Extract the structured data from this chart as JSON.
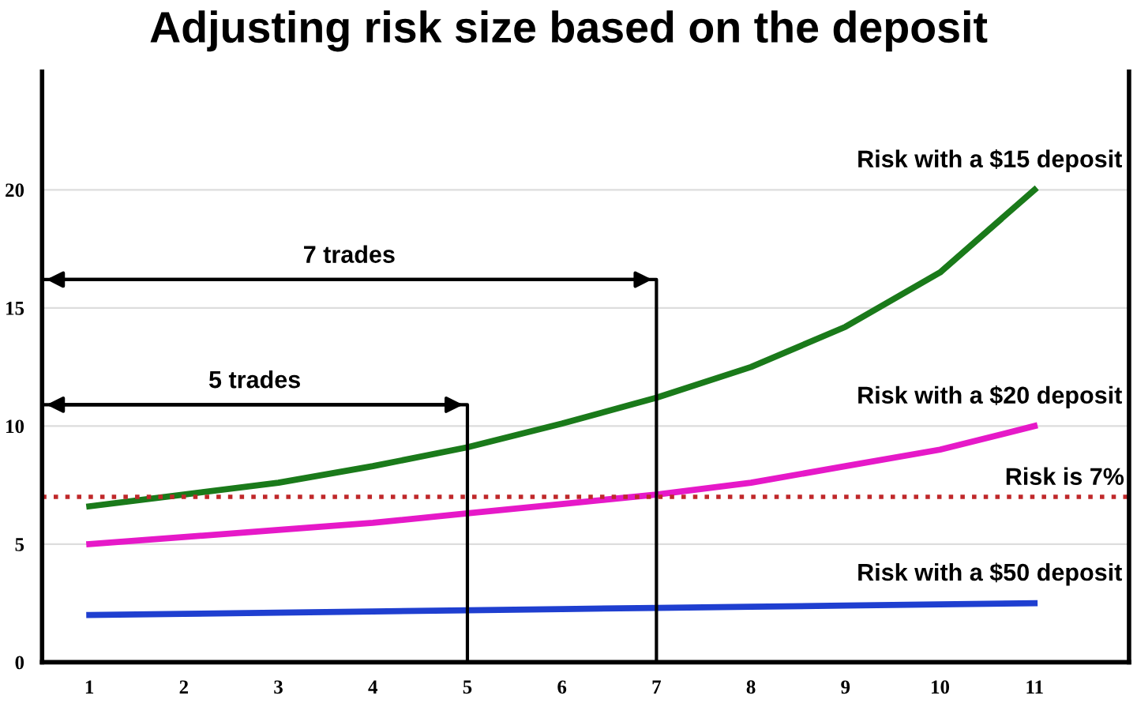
{
  "chart_data": {
    "type": "line",
    "title": "Adjusting risk size based on the deposit",
    "x": [
      1,
      2,
      3,
      4,
      5,
      6,
      7,
      8,
      9,
      10,
      11
    ],
    "series": [
      {
        "name": "Risk with a $15 deposit",
        "color": "#1a7a1a",
        "values": [
          6.6,
          7.1,
          7.6,
          8.3,
          9.1,
          10.1,
          11.2,
          12.5,
          14.2,
          16.5,
          20
        ]
      },
      {
        "name": "Risk with a $20 deposit",
        "color": "#e619c8",
        "values": [
          5.0,
          5.3,
          5.6,
          5.9,
          6.3,
          6.7,
          7.1,
          7.6,
          8.3,
          9.0,
          10
        ]
      },
      {
        "name": "Risk with a $50 deposit",
        "color": "#1f3fd0",
        "values": [
          2.0,
          2.05,
          2.1,
          2.15,
          2.2,
          2.25,
          2.3,
          2.35,
          2.4,
          2.45,
          2.5
        ]
      },
      {
        "type": "line",
        "color": "#000000",
        "x": [
          0.5,
          5,
          5
        ],
        "values": [
          10.9,
          10.9,
          0
        ]
      },
      {
        "type": "line",
        "color": "#000000",
        "x": [
          0.5,
          7,
          7
        ],
        "values": [
          16.2,
          16.2,
          0
        ]
      }
    ],
    "xlim": [
      0.5,
      12
    ],
    "ylim": [
      0,
      25
    ],
    "xticks": [
      1,
      2,
      3,
      4,
      5,
      6,
      7,
      8,
      9,
      10,
      11
    ],
    "yticks": [
      0,
      5,
      10,
      15,
      20
    ],
    "grid": "y",
    "marker": "none",
    "line_style": "solid",
    "ref_lines": [
      {
        "axis": "y",
        "value": 7,
        "label": "Risk is 7%",
        "color": "#c0282a",
        "line_style": "dotted"
      }
    ],
    "annotations": [
      "5 trades",
      "7 trades"
    ]
  }
}
